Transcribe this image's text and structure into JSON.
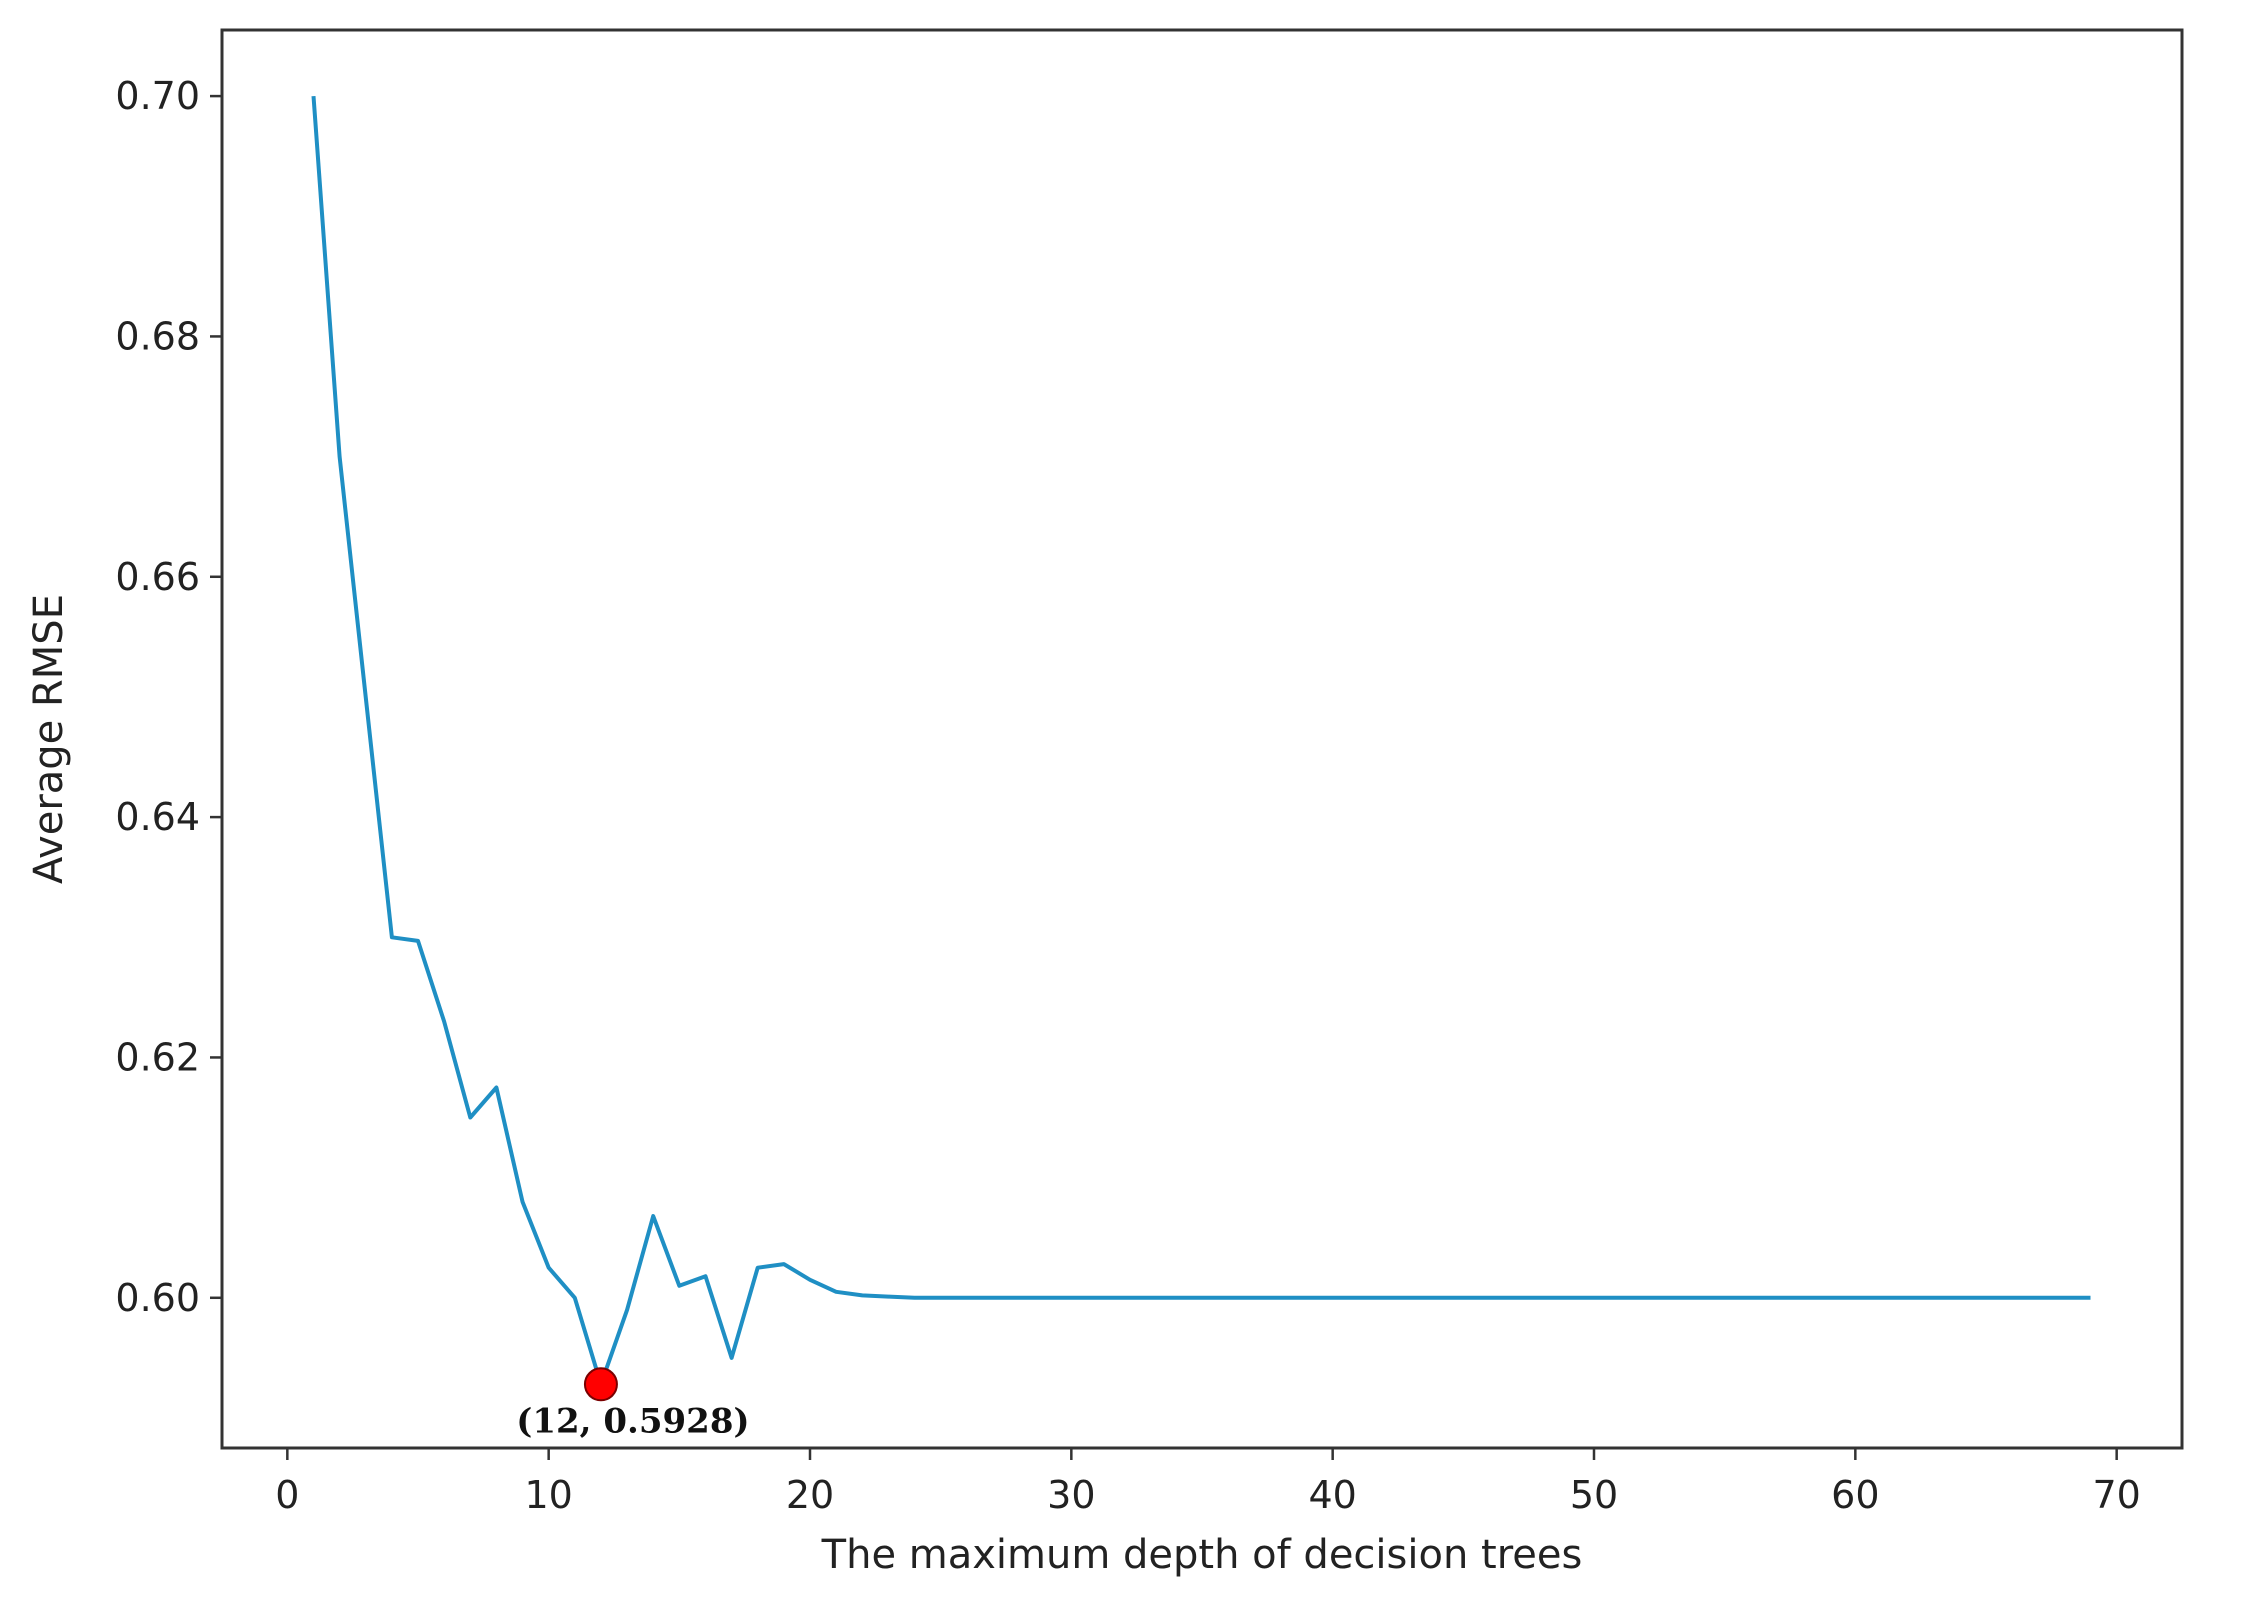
{
  "chart_data": {
    "type": "line",
    "title": "",
    "xlabel": "The maximum depth of decision trees",
    "ylabel": "Average RMSE",
    "xlim": [
      -2.5,
      72.5
    ],
    "ylim": [
      0.5875,
      0.7055
    ],
    "xticks": [
      0,
      10,
      20,
      30,
      40,
      50,
      60,
      70
    ],
    "xtick_labels": [
      "0",
      "10",
      "20",
      "30",
      "40",
      "50",
      "60",
      "70"
    ],
    "yticks": [
      0.6,
      0.62,
      0.64,
      0.66,
      0.68,
      0.7
    ],
    "ytick_labels": [
      "0.60",
      "0.62",
      "0.64",
      "0.66",
      "0.68",
      "0.70"
    ],
    "grid": false,
    "legend": false,
    "line_color": "#1f8fc4",
    "series": [
      {
        "x": [
          1,
          2,
          3,
          4,
          5,
          6,
          7,
          8,
          9,
          10,
          11,
          12,
          13,
          14,
          15,
          16,
          17,
          18,
          19,
          20,
          21,
          22,
          23,
          24,
          25,
          30,
          35,
          40,
          45,
          50,
          55,
          60,
          65,
          69
        ],
        "y": [
          0.7,
          0.67,
          0.65,
          0.63,
          0.6297,
          0.623,
          0.615,
          0.6175,
          0.608,
          0.6025,
          0.6,
          0.5928,
          0.599,
          0.6068,
          0.601,
          0.6018,
          0.595,
          0.6025,
          0.6028,
          0.6015,
          0.6005,
          0.6002,
          0.6001,
          0.6,
          0.6,
          0.6,
          0.6,
          0.6,
          0.6,
          0.6,
          0.6,
          0.6,
          0.6,
          0.6
        ]
      }
    ],
    "annotation": {
      "x": 12,
      "y": 0.5928,
      "label": "(12, 0.5928)",
      "marker_color": "#ff0000"
    }
  }
}
